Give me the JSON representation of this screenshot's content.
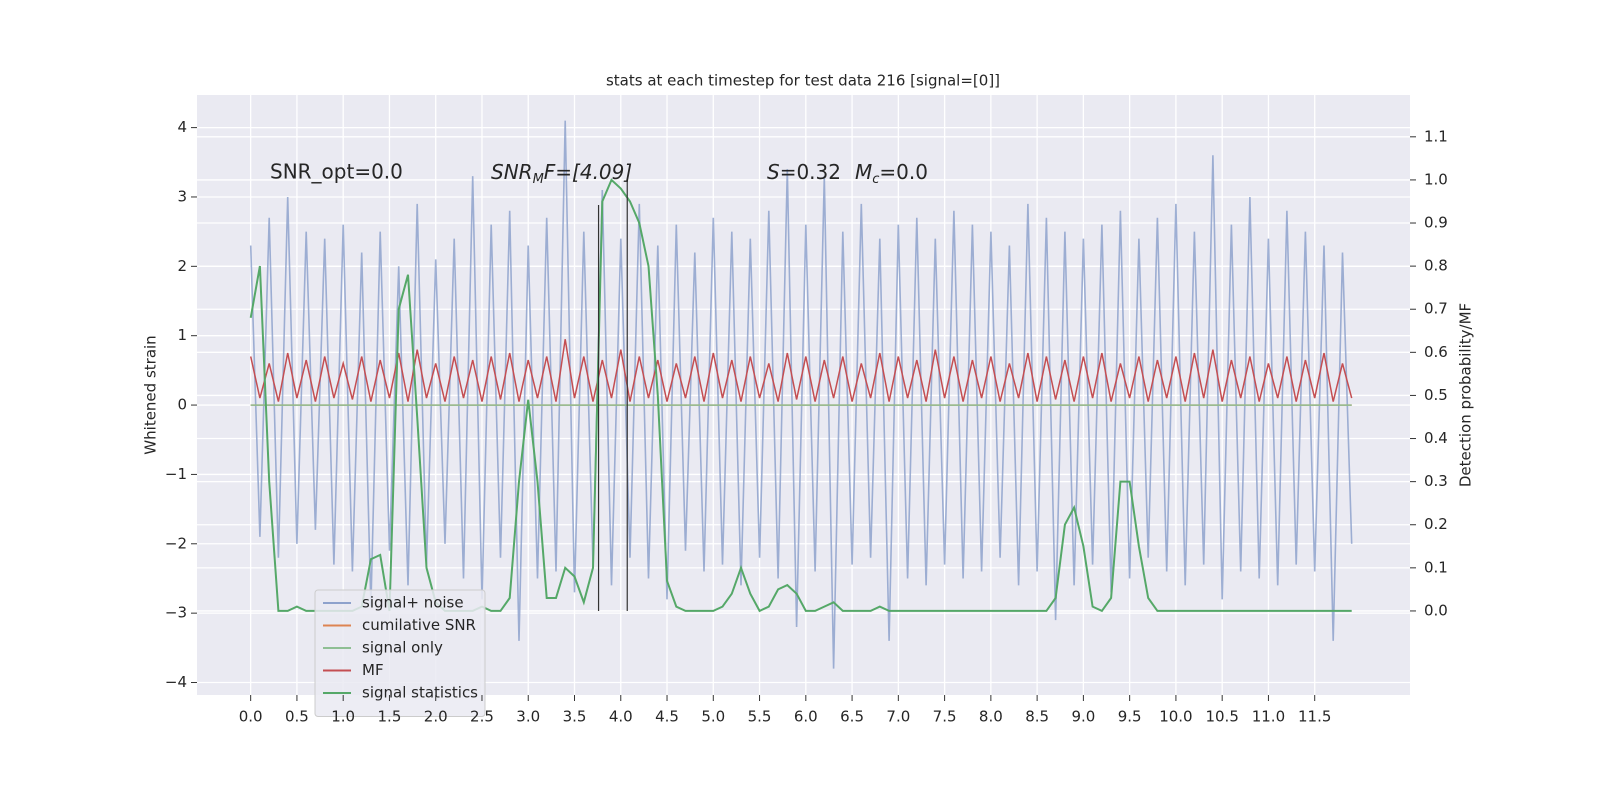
{
  "chart_data": {
    "type": "line",
    "title": "stats at each timestep for test data 216 [signal=[0]]",
    "ylabel": "Whitened strain",
    "y2label": "Detection probability/MF",
    "annotations": [
      "SNR_opt=0.0",
      [
        "SNR",
        "M",
        "F=[4.09]"
      ],
      [
        "S",
        "=0.32",
        "M",
        "c",
        "=0.0"
      ]
    ],
    "xlim": [
      -0.58,
      12.53
    ],
    "ylim": [
      -4.18,
      4.47
    ],
    "y2lim": [
      -0.195,
      1.197
    ],
    "xticks": [
      {
        "value": 0,
        "label": "0.0"
      },
      0.5,
      {
        "value": 1,
        "label": "1.0"
      },
      1.5,
      {
        "value": 2,
        "label": "2.0"
      },
      2.5,
      {
        "value": 3,
        "label": "3.0"
      },
      3.5,
      {
        "value": 4,
        "label": "4.0"
      },
      4.5,
      {
        "value": 5,
        "label": "5.0"
      },
      5.5,
      {
        "value": 6,
        "label": "6.0"
      },
      6.5,
      {
        "value": 7,
        "label": "7.0"
      },
      7.5,
      {
        "value": 8,
        "label": "8.0"
      },
      8.5,
      {
        "value": 9,
        "label": "9.0"
      },
      9.5,
      {
        "value": 10,
        "label": "10.0"
      },
      10.5,
      {
        "value": 11,
        "label": "11.0"
      },
      11.5
    ],
    "yticks": [
      {
        "value": -4,
        "label": "−4"
      },
      {
        "value": -3,
        "label": "−3"
      },
      {
        "value": -2,
        "label": "−2"
      },
      {
        "value": -1,
        "label": "−1"
      },
      0,
      1,
      2,
      3,
      4
    ],
    "y2ticks": [
      {
        "value": 0,
        "label": "0.0"
      },
      0.1,
      0.2,
      0.3,
      0.4,
      0.5,
      0.6,
      0.7,
      0.8,
      0.9,
      {
        "value": 1,
        "label": "1.0"
      },
      1.1
    ],
    "grid": true,
    "legend": "lower left",
    "vlines": [
      3.76,
      4.07
    ],
    "x": [
      0.0,
      0.1,
      0.2,
      0.3,
      0.4,
      0.5,
      0.6,
      0.7,
      0.8,
      0.9,
      1.0,
      1.1,
      1.2,
      1.3,
      1.4,
      1.5,
      1.6,
      1.7,
      1.8,
      1.9,
      2.0,
      2.1,
      2.2,
      2.3,
      2.4,
      2.5,
      2.6,
      2.7,
      2.8,
      2.9,
      3.0,
      3.1,
      3.2,
      3.3,
      3.4,
      3.5,
      3.6,
      3.7,
      3.8,
      3.9,
      4.0,
      4.1,
      4.2,
      4.3,
      4.4,
      4.5,
      4.6,
      4.7,
      4.8,
      4.9,
      5.0,
      5.1,
      5.2,
      5.3,
      5.4,
      5.5,
      5.6,
      5.7,
      5.8,
      5.9,
      6.0,
      6.1,
      6.2,
      6.3,
      6.4,
      6.5,
      6.6,
      6.7,
      6.8,
      6.9,
      7.0,
      7.1,
      7.2,
      7.3,
      7.4,
      7.5,
      7.6,
      7.7,
      7.8,
      7.9,
      8.0,
      8.1,
      8.2,
      8.3,
      8.4,
      8.5,
      8.6,
      8.7,
      8.8,
      8.9,
      9.0,
      9.1,
      9.2,
      9.3,
      9.4,
      9.5,
      9.6,
      9.7,
      9.8,
      9.9,
      10.0,
      10.1,
      10.2,
      10.3,
      10.4,
      10.5,
      10.6,
      10.7,
      10.8,
      10.9,
      11.0,
      11.1,
      11.2,
      11.3,
      11.4,
      11.5,
      11.6,
      11.7,
      11.8,
      11.9
    ],
    "series": [
      {
        "name": "signal+ noise",
        "color": "#8ea2cc",
        "axis": "y",
        "values": [
          2.3,
          -1.9,
          2.7,
          -2.2,
          3.0,
          -2.0,
          2.5,
          -1.8,
          2.4,
          -2.3,
          2.6,
          -2.4,
          2.2,
          -2.9,
          2.5,
          -2.1,
          2.0,
          -2.6,
          2.9,
          -2.3,
          2.1,
          -2.0,
          2.4,
          -2.5,
          3.3,
          -2.8,
          2.6,
          -2.2,
          2.8,
          -3.4,
          2.3,
          -2.5,
          2.7,
          -2.4,
          4.1,
          -2.7,
          2.5,
          -2.3,
          3.1,
          -2.6,
          2.4,
          -2.2,
          2.9,
          -2.5,
          2.3,
          -2.8,
          2.6,
          -2.1,
          2.2,
          -2.4,
          2.7,
          -2.3,
          2.5,
          -2.6,
          2.4,
          -2.2,
          2.8,
          -2.5,
          3.4,
          -3.2,
          2.6,
          -2.4,
          3.3,
          -3.8,
          2.5,
          -2.3,
          2.9,
          -2.2,
          2.4,
          -3.4,
          2.6,
          -2.5,
          2.7,
          -2.6,
          2.4,
          -2.3,
          2.8,
          -2.5,
          2.6,
          -2.4,
          2.5,
          -2.2,
          2.3,
          -2.6,
          2.9,
          -2.4,
          2.7,
          -3.1,
          2.5,
          -2.6,
          2.4,
          -2.3,
          2.6,
          -2.7,
          2.8,
          -2.5,
          2.4,
          -2.2,
          2.7,
          -2.4,
          2.9,
          -2.6,
          2.5,
          -2.3,
          3.6,
          -2.8,
          2.6,
          -2.4,
          3.0,
          -2.5,
          2.4,
          -2.6,
          2.8,
          -2.3,
          2.5,
          -2.4,
          2.3,
          -3.4,
          2.2,
          -2.0
        ]
      },
      {
        "name": "cumilative SNR",
        "color": "#dd8452",
        "axis": "y",
        "values": [
          0,
          0,
          0,
          0,
          0,
          0,
          0,
          0,
          0,
          0,
          0,
          0,
          0,
          0,
          0,
          0,
          0,
          0,
          0,
          0,
          0,
          0,
          0,
          0,
          0,
          0,
          0,
          0,
          0,
          0,
          0,
          0,
          0,
          0,
          0,
          0,
          0,
          0,
          0,
          0,
          0,
          0,
          0,
          0,
          0,
          0,
          0,
          0,
          0,
          0,
          0,
          0,
          0,
          0,
          0,
          0,
          0,
          0,
          0,
          0,
          0,
          0,
          0,
          0,
          0,
          0,
          0,
          0,
          0,
          0,
          0,
          0,
          0,
          0,
          0,
          0,
          0,
          0,
          0,
          0,
          0,
          0,
          0,
          0,
          0,
          0,
          0,
          0,
          0,
          0,
          0,
          0,
          0,
          0,
          0,
          0,
          0,
          0,
          0,
          0,
          0,
          0,
          0,
          0,
          0,
          0,
          0,
          0,
          0,
          0,
          0,
          0,
          0,
          0,
          0,
          0,
          0,
          0,
          0,
          0
        ]
      },
      {
        "name": "signal only",
        "color": "#8fbf94",
        "axis": "y",
        "values": [
          0,
          0,
          0,
          0,
          0,
          0,
          0,
          0,
          0,
          0,
          0,
          0,
          0,
          0,
          0,
          0,
          0,
          0,
          0,
          0,
          0,
          0,
          0,
          0,
          0,
          0,
          0,
          0,
          0,
          0,
          0,
          0,
          0,
          0,
          0,
          0,
          0,
          0,
          0,
          0,
          0,
          0,
          0,
          0,
          0,
          0,
          0,
          0,
          0,
          0,
          0,
          0,
          0,
          0,
          0,
          0,
          0,
          0,
          0,
          0,
          0,
          0,
          0,
          0,
          0,
          0,
          0,
          0,
          0,
          0,
          0,
          0,
          0,
          0,
          0,
          0,
          0,
          0,
          0,
          0,
          0,
          0,
          0,
          0,
          0,
          0,
          0,
          0,
          0,
          0,
          0,
          0,
          0,
          0,
          0,
          0,
          0,
          0,
          0,
          0,
          0,
          0,
          0,
          0,
          0,
          0,
          0,
          0,
          0,
          0,
          0,
          0,
          0,
          0,
          0,
          0,
          0,
          0,
          0,
          0
        ]
      },
      {
        "name": "MF",
        "color": "#c44e52",
        "axis": "y",
        "values": [
          0.7,
          0.1,
          0.6,
          0.05,
          0.75,
          0.1,
          0.65,
          0.05,
          0.7,
          0.1,
          0.6,
          0.08,
          0.7,
          0.05,
          0.65,
          0.1,
          0.75,
          0.05,
          0.8,
          0.1,
          0.6,
          0.05,
          0.7,
          0.1,
          0.65,
          0.05,
          0.7,
          0.08,
          0.75,
          0.05,
          0.65,
          0.1,
          0.7,
          0.05,
          0.95,
          0.1,
          0.7,
          0.05,
          0.65,
          0.1,
          0.8,
          0.05,
          0.7,
          0.1,
          0.65,
          0.05,
          0.6,
          0.1,
          0.7,
          0.05,
          0.75,
          0.1,
          0.65,
          0.05,
          0.7,
          0.1,
          0.6,
          0.05,
          0.75,
          0.08,
          0.7,
          0.05,
          0.65,
          0.1,
          0.7,
          0.05,
          0.6,
          0.1,
          0.75,
          0.05,
          0.7,
          0.1,
          0.65,
          0.05,
          0.8,
          0.1,
          0.7,
          0.05,
          0.65,
          0.1,
          0.7,
          0.05,
          0.6,
          0.1,
          0.75,
          0.05,
          0.7,
          0.08,
          0.65,
          0.05,
          0.7,
          0.1,
          0.75,
          0.05,
          0.6,
          0.1,
          0.7,
          0.05,
          0.65,
          0.1,
          0.7,
          0.05,
          0.75,
          0.1,
          0.8,
          0.05,
          0.65,
          0.1,
          0.7,
          0.05,
          0.6,
          0.1,
          0.7,
          0.05,
          0.65,
          0.1,
          0.75,
          0.05,
          0.6,
          0.1
        ]
      },
      {
        "name": "signal statistics",
        "color": "#55a868",
        "axis": "y2",
        "values": [
          0.68,
          0.8,
          0.3,
          0.0,
          0.0,
          0.01,
          0.0,
          0.0,
          0.0,
          0.0,
          0.0,
          0.0,
          0.01,
          0.12,
          0.13,
          0.0,
          0.7,
          0.78,
          0.45,
          0.1,
          0.02,
          0.0,
          0.0,
          0.0,
          0.0,
          0.01,
          0.0,
          0.0,
          0.03,
          0.3,
          0.49,
          0.3,
          0.03,
          0.03,
          0.1,
          0.08,
          0.02,
          0.1,
          0.95,
          1.0,
          0.98,
          0.95,
          0.9,
          0.8,
          0.5,
          0.07,
          0.01,
          0.0,
          0.0,
          0.0,
          0.0,
          0.01,
          0.04,
          0.1,
          0.04,
          0.0,
          0.01,
          0.05,
          0.06,
          0.04,
          0.0,
          0.0,
          0.01,
          0.02,
          0.0,
          0.0,
          0.0,
          0.0,
          0.01,
          0.0,
          0.0,
          0.0,
          0.0,
          0.0,
          0.0,
          0.0,
          0.0,
          0.0,
          0.0,
          0.0,
          0.0,
          0.0,
          0.0,
          0.0,
          0.0,
          0.0,
          0.0,
          0.03,
          0.2,
          0.24,
          0.15,
          0.01,
          0.0,
          0.03,
          0.3,
          0.3,
          0.15,
          0.03,
          0.0,
          0.0,
          0.0,
          0.0,
          0.0,
          0.0,
          0.0,
          0.0,
          0.0,
          0.0,
          0.0,
          0.0,
          0.0,
          0.0,
          0.0,
          0.0,
          0.0,
          0.0,
          0.0,
          0.0,
          0.0,
          0.0
        ]
      }
    ]
  }
}
